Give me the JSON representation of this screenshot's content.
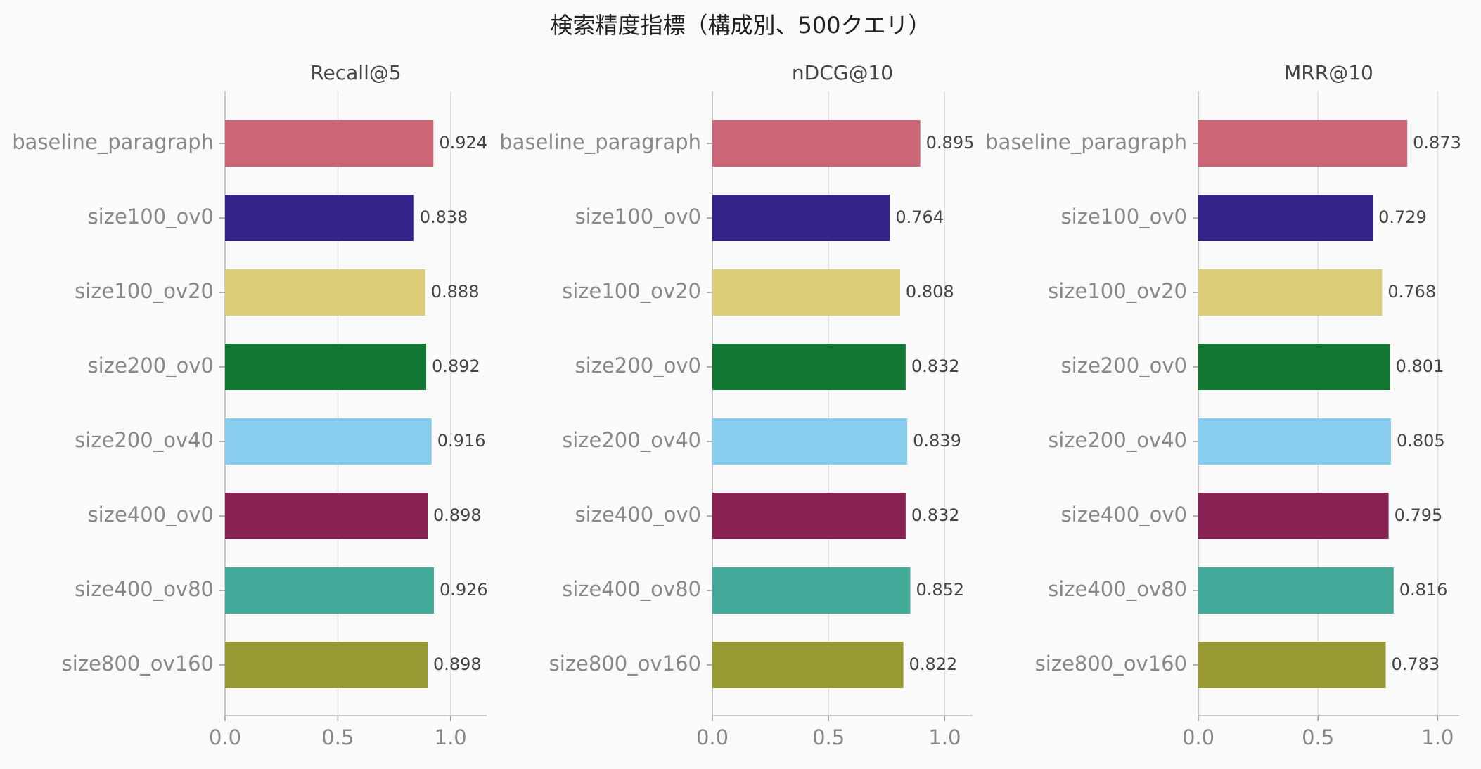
{
  "title": "検索精度指標（構成別、500クエリ）",
  "chart_data": [
    {
      "type": "bar",
      "orientation": "horizontal",
      "title": "Recall@5",
      "categories": [
        "baseline_paragraph",
        "size100_ov0",
        "size100_ov20",
        "size200_ov0",
        "size200_ov40",
        "size400_ov0",
        "size400_ov80",
        "size800_ov160"
      ],
      "values": [
        0.924,
        0.838,
        0.888,
        0.892,
        0.916,
        0.898,
        0.926,
        0.898
      ],
      "colors": [
        "#CC6677",
        "#332288",
        "#DDCC77",
        "#117733",
        "#88CCEE",
        "#882255",
        "#44AA99",
        "#999933"
      ],
      "xlim": [
        0,
        1.16
      ],
      "xticks": [
        {
          "value": 0,
          "label": "0.0"
        },
        {
          "value": 0.5,
          "label": "0.5"
        },
        {
          "value": 1,
          "label": "1.0"
        }
      ],
      "grid": true
    },
    {
      "type": "bar",
      "orientation": "horizontal",
      "title": "nDCG@10",
      "categories": [
        "baseline_paragraph",
        "size100_ov0",
        "size100_ov20",
        "size200_ov0",
        "size200_ov40",
        "size400_ov0",
        "size400_ov80",
        "size800_ov160"
      ],
      "values": [
        0.895,
        0.764,
        0.808,
        0.832,
        0.839,
        0.832,
        0.852,
        0.822
      ],
      "colors": [
        "#CC6677",
        "#332288",
        "#DDCC77",
        "#117733",
        "#88CCEE",
        "#882255",
        "#44AA99",
        "#999933"
      ],
      "xlim": [
        0,
        1.12
      ],
      "xticks": [
        {
          "value": 0,
          "label": "0.0"
        },
        {
          "value": 0.5,
          "label": "0.5"
        },
        {
          "value": 1,
          "label": "1.0"
        }
      ],
      "grid": true
    },
    {
      "type": "bar",
      "orientation": "horizontal",
      "title": "MRR@10",
      "categories": [
        "baseline_paragraph",
        "size100_ov0",
        "size100_ov20",
        "size200_ov0",
        "size200_ov40",
        "size400_ov0",
        "size400_ov80",
        "size800_ov160"
      ],
      "values": [
        0.873,
        0.729,
        0.768,
        0.801,
        0.805,
        0.795,
        0.816,
        0.783
      ],
      "colors": [
        "#CC6677",
        "#332288",
        "#DDCC77",
        "#117733",
        "#88CCEE",
        "#882255",
        "#44AA99",
        "#999933"
      ],
      "xlim": [
        0,
        1.09
      ],
      "xticks": [
        {
          "value": 0,
          "label": "0.0"
        },
        {
          "value": 0.5,
          "label": "0.5"
        },
        {
          "value": 1,
          "label": "1.0"
        }
      ],
      "grid": true
    }
  ]
}
